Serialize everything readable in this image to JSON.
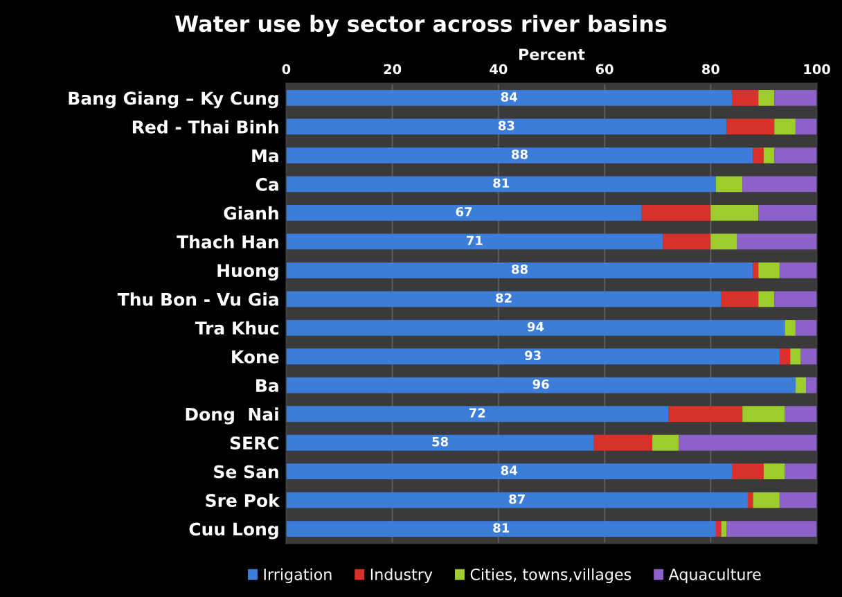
{
  "chart_data": {
    "type": "bar",
    "orientation": "horizontal",
    "stacked": true,
    "title": "Water use by sector across river basins",
    "xlabel": "Percent",
    "categories": [
      "Bang Giang – Ky Cung",
      "Red - Thai Binh",
      "Ma",
      "Ca",
      "Gianh",
      "Thach Han",
      "Huong",
      "Thu Bon - Vu Gia",
      "Tra Khuc",
      "Kone",
      "Ba",
      "Dong  Nai",
      "SERC",
      "Se San",
      "Sre Pok",
      "Cuu Long"
    ],
    "series": [
      {
        "name": "Irrigation",
        "color": "#3c7dd9",
        "values": [
          84,
          83,
          88,
          81,
          67,
          71,
          88,
          82,
          94,
          93,
          96,
          72,
          58,
          84,
          87,
          81
        ],
        "value_labels": [
          "84",
          "83",
          "88",
          "81",
          "67",
          "71",
          "88",
          "82",
          "94",
          "93",
          "96",
          "72",
          "58",
          "84",
          "87",
          "81"
        ]
      },
      {
        "name": "Industry",
        "color": "#d8312c",
        "values": [
          5,
          9,
          2,
          0,
          13,
          9,
          1,
          7,
          0,
          2,
          0,
          14,
          11,
          6,
          1,
          1
        ]
      },
      {
        "name": "Cities, towns,villages",
        "color": "#9ccc2e",
        "values": [
          3,
          4,
          2,
          5,
          9,
          5,
          4,
          3,
          2,
          2,
          2,
          8,
          5,
          4,
          5,
          1
        ]
      },
      {
        "name": "Aquaculture",
        "color": "#8c62c9",
        "values": [
          8,
          4,
          8,
          14,
          11,
          15,
          7,
          8,
          4,
          3,
          2,
          6,
          26,
          6,
          7,
          17
        ]
      }
    ],
    "xlim": [
      0,
      100
    ],
    "xticks": [
      0,
      20,
      40,
      60,
      80,
      100
    ],
    "grid": "x",
    "legend": "bottom"
  }
}
